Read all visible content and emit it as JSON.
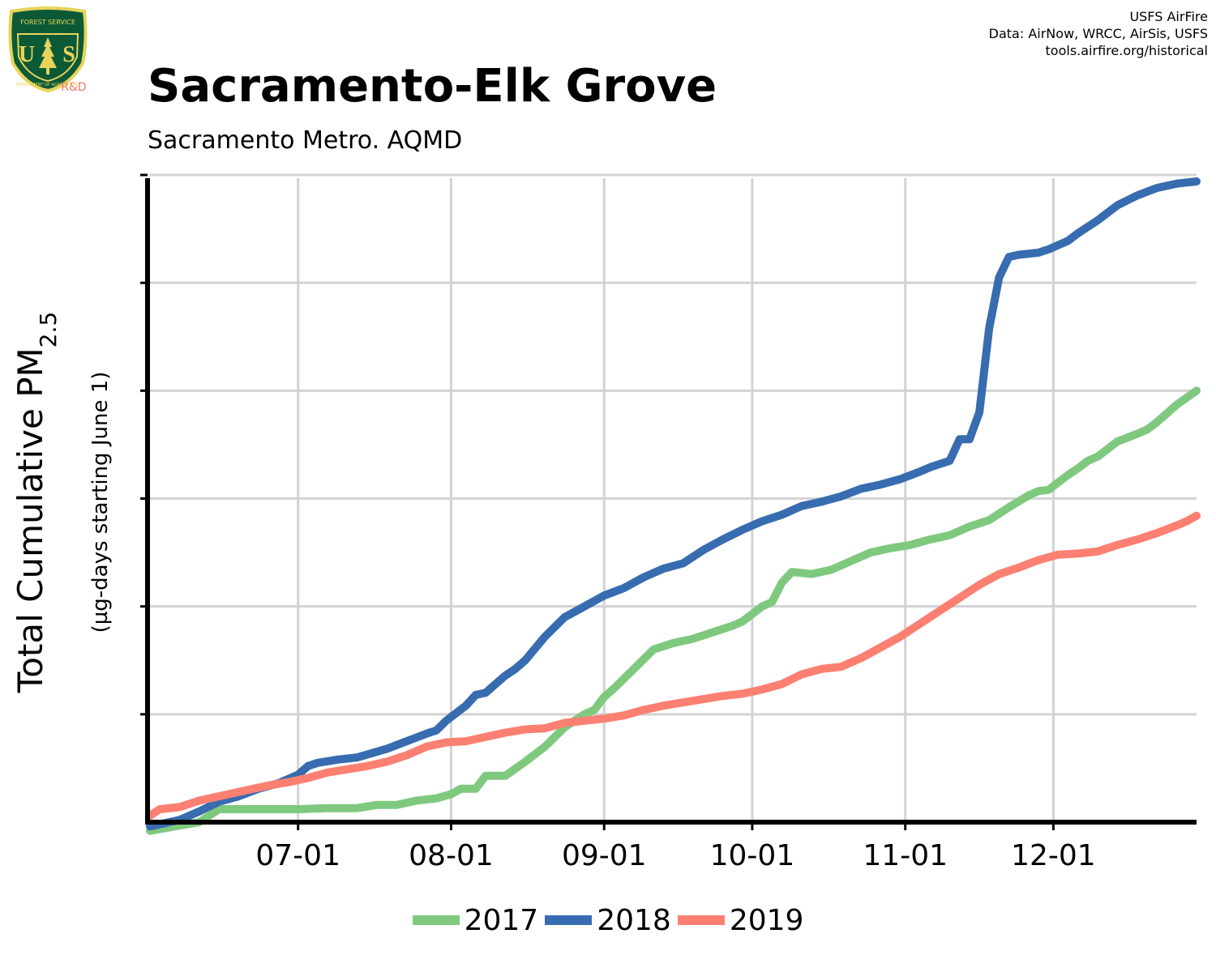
{
  "header": {
    "title": "Sacramento-Elk Grove",
    "subtitle": "Sacramento Metro. AQMD",
    "credits": [
      "USFS AirFire",
      "Data: AirNow, WRCC, AirSis, USFS",
      "tools.airfire.org/historical"
    ]
  },
  "logo": {
    "icon": "usfs-shield-icon",
    "top_text": "FOREST SERVICE",
    "bottom_text": "DEPARTMENT OF AGRICULTURE",
    "letters": "U S",
    "rd_label": "R&D",
    "colors": {
      "shield": "#0b5a36",
      "border": "#e8d35a",
      "text": "#e8d35a",
      "rd": "#f07a6a"
    }
  },
  "chart_data": {
    "type": "line",
    "ylabel_main": "Total Cumulative PM",
    "ylabel_sub": "2.5",
    "ylabel_note": "(µg-days starting June 1)",
    "x_tick_labels": [
      "07-01",
      "08-01",
      "09-01",
      "10-01",
      "11-01",
      "12-01"
    ],
    "x_tick_days": [
      30,
      61,
      92,
      122,
      153,
      183
    ],
    "xlim_days": [
      0,
      212
    ],
    "ylim": [
      0,
      6
    ],
    "y_tick_values": [
      1,
      2,
      3,
      4,
      5,
      6
    ],
    "y_tick_labels_shown": false,
    "grid": true,
    "legend_placement": "bottom-center",
    "series": [
      {
        "name": "2017",
        "color": "#7fc97f",
        "x": [
          0,
          10,
          14,
          20,
          30,
          36,
          42,
          46,
          50,
          54,
          58,
          61,
          63,
          66,
          68,
          70,
          72,
          76,
          80,
          84,
          88,
          90,
          92,
          94,
          98,
          102,
          106,
          110,
          114,
          118,
          120,
          124,
          126,
          128,
          130,
          134,
          138,
          142,
          146,
          150,
          154,
          158,
          162,
          166,
          170,
          174,
          178,
          180,
          182,
          186,
          188,
          190,
          192,
          196,
          200,
          202,
          204,
          208,
          212
        ],
        "y": [
          -0.08,
          0,
          0.12,
          0.12,
          0.12,
          0.13,
          0.13,
          0.16,
          0.16,
          0.2,
          0.22,
          0.26,
          0.31,
          0.31,
          0.43,
          0.43,
          0.43,
          0.56,
          0.7,
          0.88,
          1.0,
          1.04,
          1.16,
          1.24,
          1.42,
          1.6,
          1.66,
          1.7,
          1.76,
          1.82,
          1.86,
          2.0,
          2.04,
          2.22,
          2.32,
          2.3,
          2.34,
          2.42,
          2.5,
          2.54,
          2.57,
          2.62,
          2.66,
          2.74,
          2.8,
          2.92,
          3.03,
          3.07,
          3.08,
          3.22,
          3.28,
          3.35,
          3.39,
          3.53,
          3.6,
          3.64,
          3.71,
          3.87,
          4.0
        ]
      },
      {
        "name": "2018",
        "color": "#386cb0",
        "x": [
          0,
          6,
          10,
          14,
          18,
          22,
          26,
          30,
          32,
          34,
          38,
          42,
          48,
          52,
          56,
          58,
          60,
          64,
          66,
          68,
          70,
          72,
          74,
          76,
          80,
          84,
          88,
          92,
          96,
          100,
          104,
          108,
          112,
          116,
          120,
          124,
          128,
          132,
          136,
          140,
          144,
          148,
          152,
          156,
          158,
          160,
          162,
          164,
          166,
          168,
          170,
          172,
          174,
          176,
          178,
          180,
          182,
          186,
          188,
          192,
          196,
          200,
          204,
          208,
          212
        ],
        "y": [
          -0.04,
          0.02,
          0.1,
          0.19,
          0.24,
          0.31,
          0.36,
          0.44,
          0.52,
          0.55,
          0.58,
          0.6,
          0.68,
          0.75,
          0.82,
          0.85,
          0.94,
          1.08,
          1.18,
          1.2,
          1.28,
          1.36,
          1.42,
          1.5,
          1.72,
          1.9,
          2.0,
          2.1,
          2.17,
          2.27,
          2.35,
          2.4,
          2.52,
          2.62,
          2.71,
          2.79,
          2.85,
          2.93,
          2.97,
          3.02,
          3.09,
          3.13,
          3.18,
          3.25,
          3.29,
          3.32,
          3.35,
          3.55,
          3.55,
          3.8,
          4.58,
          5.05,
          5.24,
          5.26,
          5.27,
          5.28,
          5.31,
          5.39,
          5.46,
          5.58,
          5.72,
          5.81,
          5.88,
          5.92,
          5.94
        ]
      },
      {
        "name": "2019",
        "color": "#fb8072",
        "x": [
          0,
          2,
          6,
          10,
          14,
          20,
          24,
          28,
          32,
          36,
          40,
          44,
          48,
          52,
          56,
          60,
          64,
          68,
          72,
          76,
          80,
          84,
          88,
          92,
          96,
          100,
          104,
          108,
          112,
          116,
          120,
          124,
          128,
          132,
          136,
          140,
          144,
          148,
          152,
          156,
          160,
          164,
          168,
          172,
          176,
          180,
          184,
          188,
          192,
          196,
          200,
          204,
          208,
          210,
          212
        ],
        "y": [
          0.06,
          0.12,
          0.14,
          0.2,
          0.24,
          0.3,
          0.34,
          0.37,
          0.41,
          0.46,
          0.49,
          0.52,
          0.56,
          0.62,
          0.7,
          0.74,
          0.75,
          0.79,
          0.83,
          0.86,
          0.87,
          0.92,
          0.94,
          0.96,
          0.99,
          1.04,
          1.08,
          1.11,
          1.14,
          1.17,
          1.19,
          1.23,
          1.28,
          1.37,
          1.42,
          1.44,
          1.52,
          1.62,
          1.72,
          1.84,
          1.96,
          2.08,
          2.2,
          2.3,
          2.36,
          2.43,
          2.48,
          2.49,
          2.51,
          2.57,
          2.62,
          2.68,
          2.75,
          2.79,
          2.84
        ]
      }
    ]
  }
}
